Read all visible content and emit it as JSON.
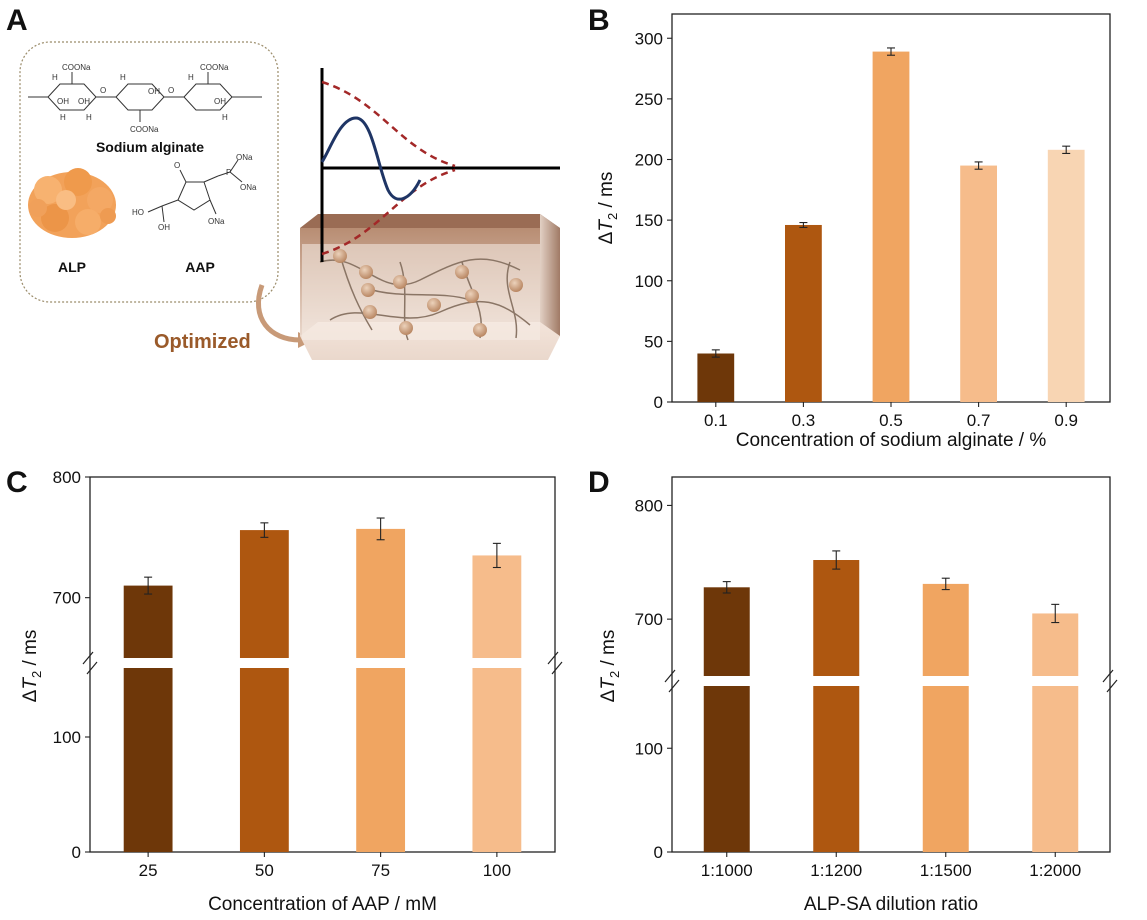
{
  "panel_labels": {
    "a": "A",
    "b": "B",
    "c": "C",
    "d": "D"
  },
  "schematic": {
    "sodium_alginate_label": "Sodium alginate",
    "alp_label": "ALP",
    "aap_label": "AAP",
    "optimized_label": "Optimized",
    "chem_text": {
      "coona": "COONa",
      "oh": "OH",
      "h": "H",
      "ona": "ONa",
      "ho": "HO",
      "p": "P",
      "o": "O"
    }
  },
  "colors": {
    "c1": "#6e3709",
    "c2": "#ae5710",
    "c3": "#f0a561",
    "c4": "#f6bc8b",
    "c5": "#f8d5b3",
    "wave": "#1f3565",
    "envelope": "#a32828",
    "bead": "#c89a78"
  },
  "chart_data": [
    {
      "panel": "B",
      "type": "bar",
      "categories": [
        "0.1",
        "0.3",
        "0.5",
        "0.7",
        "0.9"
      ],
      "values": [
        40,
        146,
        289,
        195,
        208
      ],
      "errors": [
        3,
        2,
        3,
        3,
        3
      ],
      "ylim": [
        0,
        320
      ],
      "yticks": [
        "0",
        "50",
        "100",
        "150",
        "200",
        "250",
        "300"
      ],
      "ylabel_prefix": "Δ",
      "ylabel_symbol": "T",
      "ylabel_sub": "2",
      "ylabel_suffix": " / ms",
      "xlabel": "Concentration of sodium alginate / %"
    },
    {
      "panel": "C",
      "type": "bar",
      "categories": [
        "25",
        "50",
        "75",
        "100"
      ],
      "values": [
        710,
        756,
        757,
        735
      ],
      "errors": [
        7,
        6,
        9,
        10
      ],
      "axis_break": {
        "lower": [
          0,
          160
        ],
        "upper": [
          650,
          800
        ]
      },
      "yticks": [
        "0",
        "100",
        "700",
        "800"
      ],
      "ylabel_prefix": "Δ",
      "ylabel_symbol": "T",
      "ylabel_sub": "2",
      "ylabel_suffix": " / ms",
      "xlabel": "Concentration of AAP / mM"
    },
    {
      "panel": "D",
      "type": "bar",
      "categories": [
        "1:1000",
        "1:1200",
        "1:1500",
        "1:2000"
      ],
      "values": [
        728,
        752,
        731,
        705
      ],
      "errors": [
        5,
        8,
        5,
        8
      ],
      "axis_break": {
        "lower": [
          0,
          160
        ],
        "upper": [
          650,
          825
        ]
      },
      "yticks": [
        "0",
        "100",
        "700",
        "800"
      ],
      "ylabel_prefix": "Δ",
      "ylabel_symbol": "T",
      "ylabel_sub": "2",
      "ylabel_suffix": " / ms",
      "xlabel": "ALP-SA dilution ratio"
    }
  ]
}
